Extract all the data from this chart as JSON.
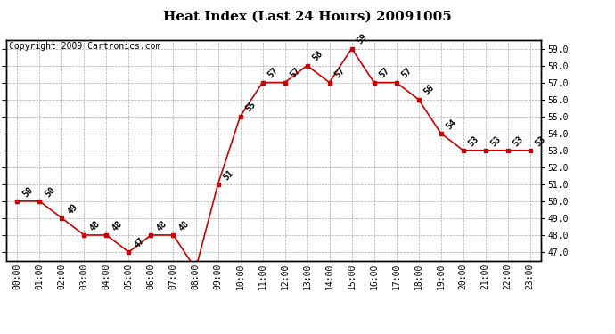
{
  "title": "Heat Index (Last 24 Hours) 20091005",
  "copyright": "Copyright 2009 Cartronics.com",
  "hours": [
    "00:00",
    "01:00",
    "02:00",
    "03:00",
    "04:00",
    "05:00",
    "06:00",
    "07:00",
    "08:00",
    "09:00",
    "10:00",
    "11:00",
    "12:00",
    "13:00",
    "14:00",
    "15:00",
    "16:00",
    "17:00",
    "18:00",
    "19:00",
    "20:00",
    "21:00",
    "22:00",
    "23:00"
  ],
  "values": [
    50,
    50,
    49,
    48,
    48,
    47,
    48,
    48,
    46,
    51,
    55,
    57,
    57,
    58,
    57,
    59,
    57,
    57,
    56,
    54,
    53,
    53,
    53,
    53
  ],
  "line_color": "#cc0000",
  "marker_color": "#cc0000",
  "background_color": "#ffffff",
  "grid_color": "#aaaaaa",
  "ylim_min": 47.0,
  "ylim_max": 59.0,
  "ytick_step": 1.0,
  "title_fontsize": 11,
  "copyright_fontsize": 7,
  "annotation_fontsize": 7,
  "tick_fontsize": 7,
  "right_ytick_step": 1.0
}
